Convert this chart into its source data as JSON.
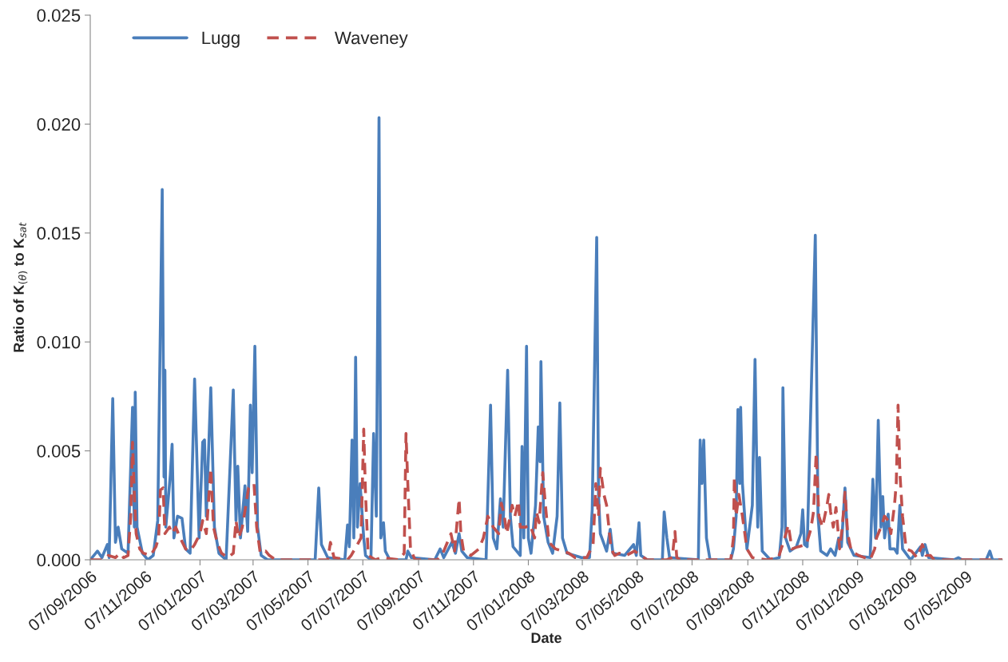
{
  "chart_data": {
    "type": "line",
    "xlabel": "Date",
    "ylabel": "Ratio of K$_{(θ)}$ to K$_{sat}$",
    "xlim": [
      "2006-09-07",
      "2009-06-17"
    ],
    "xticks": [
      {
        "value": "2006-09-07",
        "label": "07/09/2006"
      },
      {
        "value": "2006-11-07",
        "label": "07/11/2006"
      },
      {
        "value": "2007-01-07",
        "label": "07/01/2007"
      },
      {
        "value": "2007-03-07",
        "label": "07/03/2007"
      },
      {
        "value": "2007-05-07",
        "label": "07/05/2007"
      },
      {
        "value": "2007-07-07",
        "label": "07/07/2007"
      },
      {
        "value": "2007-09-07",
        "label": "07/09/2007"
      },
      {
        "value": "2007-11-07",
        "label": "07/11/2007"
      },
      {
        "value": "2008-01-07",
        "label": "07/01/2008"
      },
      {
        "value": "2008-03-07",
        "label": "07/03/2008"
      },
      {
        "value": "2008-05-07",
        "label": "07/05/2008"
      },
      {
        "value": "2008-07-07",
        "label": "07/07/2008"
      },
      {
        "value": "2008-09-07",
        "label": "07/09/2008"
      },
      {
        "value": "2008-11-07",
        "label": "07/11/2008"
      },
      {
        "value": "2009-01-07",
        "label": "07/01/2009"
      },
      {
        "value": "2009-03-07",
        "label": "07/03/2009"
      },
      {
        "value": "2009-05-07",
        "label": "07/05/2009"
      }
    ],
    "ylim": [
      0,
      0.025
    ],
    "yticks": [
      {
        "value": 0,
        "label": "0.000"
      },
      {
        "value": 0.005,
        "label": "0.005"
      },
      {
        "value": 0.01,
        "label": "0.010"
      },
      {
        "value": 0.015,
        "label": "0.015"
      },
      {
        "value": 0.02,
        "label": "0.020"
      },
      {
        "value": 0.025,
        "label": "0.025"
      }
    ],
    "grid": false,
    "legend": "top left",
    "marker": "none",
    "series": [
      {
        "name": "Lugg",
        "color": "#4a7ebb",
        "line_style": "solid",
        "x": [
          "2006-09-07",
          "2006-09-15",
          "2006-09-20",
          "2006-09-26",
          "2006-09-28",
          "2006-10-02",
          "2006-10-05",
          "2006-10-08",
          "2006-10-12",
          "2006-10-19",
          "2006-10-24",
          "2006-10-26",
          "2006-10-27",
          "2006-10-29",
          "2006-11-04",
          "2006-11-10",
          "2006-11-16",
          "2006-11-21",
          "2006-11-26",
          "2006-11-28",
          "2006-11-29",
          "2006-11-30",
          "2006-12-05",
          "2006-12-07",
          "2006-12-09",
          "2006-12-13",
          "2006-12-18",
          "2006-12-22",
          "2006-12-27",
          "2007-01-01",
          "2007-01-04",
          "2007-01-06",
          "2007-01-10",
          "2007-01-12",
          "2007-01-14",
          "2007-01-19",
          "2007-01-23",
          "2007-01-28",
          "2007-02-05",
          "2007-02-13",
          "2007-02-16",
          "2007-02-18",
          "2007-02-21",
          "2007-02-26",
          "2007-03-01",
          "2007-03-04",
          "2007-03-06",
          "2007-03-09",
          "2007-03-12",
          "2007-03-16",
          "2007-03-23",
          "2007-05-15",
          "2007-05-19",
          "2007-05-22",
          "2007-05-29",
          "2007-06-17",
          "2007-06-20",
          "2007-06-22",
          "2007-06-25",
          "2007-06-27",
          "2007-06-29",
          "2007-07-01",
          "2007-07-04",
          "2007-07-08",
          "2007-07-10",
          "2007-07-16",
          "2007-07-19",
          "2007-07-22",
          "2007-07-25",
          "2007-07-27",
          "2007-07-30",
          "2007-08-01",
          "2007-08-06",
          "2007-08-24",
          "2007-08-26",
          "2007-08-30",
          "2007-09-25",
          "2007-10-01",
          "2007-10-05",
          "2007-10-14",
          "2007-10-18",
          "2007-10-22",
          "2007-10-25",
          "2007-10-31",
          "2007-11-21",
          "2007-11-26",
          "2007-11-29",
          "2007-12-03",
          "2007-12-07",
          "2007-12-10",
          "2007-12-15",
          "2007-12-18",
          "2007-12-21",
          "2007-12-29",
          "2007-12-31",
          "2008-01-02",
          "2008-01-05",
          "2008-01-07",
          "2008-01-10",
          "2008-01-15",
          "2008-01-18",
          "2008-01-20",
          "2008-01-21",
          "2008-01-24",
          "2008-01-29",
          "2008-02-03",
          "2008-02-08",
          "2008-02-11",
          "2008-02-14",
          "2008-02-19",
          "2008-03-06",
          "2008-03-15",
          "2008-03-18",
          "2008-03-23",
          "2008-03-25",
          "2008-03-27",
          "2008-04-03",
          "2008-04-07",
          "2008-04-10",
          "2008-04-23",
          "2008-05-03",
          "2008-05-06",
          "2008-05-09",
          "2008-05-11",
          "2008-05-18",
          "2008-06-04",
          "2008-06-06",
          "2008-06-09",
          "2008-06-12",
          "2008-07-14",
          "2008-07-16",
          "2008-07-18",
          "2008-07-20",
          "2008-07-23",
          "2008-07-27",
          "2008-08-19",
          "2008-08-22",
          "2008-08-25",
          "2008-08-27",
          "2008-08-29",
          "2008-08-30",
          "2008-09-01",
          "2008-09-06",
          "2008-09-12",
          "2008-09-15",
          "2008-09-18",
          "2008-09-20",
          "2008-09-23",
          "2008-10-02",
          "2008-10-12",
          "2008-10-15",
          "2008-10-16",
          "2008-10-19",
          "2008-10-24",
          "2008-10-31",
          "2008-11-05",
          "2008-11-07",
          "2008-11-09",
          "2008-11-12",
          "2008-11-21",
          "2008-11-24",
          "2008-11-27",
          "2008-12-04",
          "2008-12-08",
          "2008-12-13",
          "2008-12-17",
          "2008-12-20",
          "2008-12-24",
          "2008-12-27",
          "2009-01-03",
          "2009-01-21",
          "2009-01-24",
          "2009-01-27",
          "2009-01-30",
          "2009-02-02",
          "2009-02-04",
          "2009-02-06",
          "2009-02-10",
          "2009-02-12",
          "2009-02-17",
          "2009-02-20",
          "2009-02-23",
          "2009-02-26",
          "2009-03-07",
          "2009-03-18",
          "2009-03-20",
          "2009-03-23",
          "2009-03-27",
          "2009-04-24",
          "2009-04-29",
          "2009-05-03",
          "2009-05-30",
          "2009-06-03",
          "2009-06-06",
          "2009-06-17"
        ],
        "values": [
          0.0,
          0.0004,
          0.0001,
          0.0007,
          0.0001,
          0.0074,
          0.0008,
          0.0015,
          0.0005,
          0.0003,
          0.007,
          0.0015,
          0.0077,
          0.0015,
          0.0003,
          0.0,
          0.0002,
          0.0018,
          0.017,
          0.0038,
          0.0087,
          0.0015,
          0.0039,
          0.0053,
          0.001,
          0.002,
          0.0019,
          0.0005,
          0.0003,
          0.0083,
          0.004,
          0.001,
          0.0054,
          0.0055,
          0.002,
          0.0079,
          0.0015,
          0.0003,
          0.0,
          0.0078,
          0.0018,
          0.0043,
          0.001,
          0.0034,
          0.0013,
          0.0071,
          0.004,
          0.0098,
          0.0015,
          0.0002,
          0.0,
          0.0,
          0.0033,
          0.0007,
          0.0001,
          0.0,
          0.0016,
          0.0006,
          0.0055,
          0.001,
          0.0093,
          0.0015,
          0.0035,
          0.001,
          0.0002,
          0.0,
          0.0058,
          0.002,
          0.0203,
          0.001,
          0.0017,
          0.0004,
          0.0,
          0.0,
          0.0004,
          0.0001,
          0.0,
          0.0005,
          0.0001,
          0.0008,
          0.0003,
          0.0012,
          0.0004,
          0.0001,
          0.0,
          0.0071,
          0.001,
          0.0005,
          0.0028,
          0.0015,
          0.0087,
          0.002,
          0.0006,
          0.0002,
          0.0052,
          0.001,
          0.0098,
          0.001,
          0.0003,
          0.0025,
          0.0061,
          0.0045,
          0.0091,
          0.002,
          0.0008,
          0.0003,
          0.002,
          0.0072,
          0.001,
          0.0003,
          0.0001,
          0.0001,
          0.0023,
          0.0148,
          0.003,
          0.0012,
          0.0004,
          0.0014,
          0.0003,
          0.0002,
          0.0007,
          0.0002,
          0.0017,
          0.0002,
          0.0,
          0.0,
          0.0022,
          0.001,
          0.0001,
          0.0,
          0.0055,
          0.0035,
          0.0055,
          0.001,
          0.0,
          0.0,
          0.0005,
          0.002,
          0.0069,
          0.0035,
          0.007,
          0.0035,
          0.0005,
          0.0025,
          0.0092,
          0.0015,
          0.0047,
          0.0004,
          0.0,
          0.0001,
          0.0015,
          0.0079,
          0.001,
          0.0004,
          0.0006,
          0.0012,
          0.0023,
          0.0007,
          0.0006,
          0.0149,
          0.002,
          0.0004,
          0.0002,
          0.0005,
          0.0002,
          0.001,
          0.0006,
          0.0033,
          0.0008,
          0.0002,
          0.0001,
          0.0037,
          0.001,
          0.0064,
          0.0015,
          0.0029,
          0.001,
          0.0021,
          0.0005,
          0.0005,
          0.0003,
          0.0025,
          0.0005,
          0.0,
          0.0006,
          0.0002,
          0.0007,
          0.0001,
          0.0,
          0.0001,
          0.0,
          0.0,
          0.0004,
          0.0,
          0.0
        ]
      },
      {
        "name": "Waveney",
        "color": "#c0504d",
        "line_style": "dashed",
        "x": [
          "2006-09-07",
          "2006-09-22",
          "2006-09-27",
          "2006-10-05",
          "2006-10-10",
          "2006-10-14",
          "2006-10-19",
          "2006-10-22",
          "2006-10-24",
          "2006-10-26",
          "2006-10-28",
          "2006-11-01",
          "2006-11-05",
          "2006-11-13",
          "2006-11-19",
          "2006-11-22",
          "2006-11-24",
          "2006-11-27",
          "2006-11-29",
          "2006-12-04",
          "2006-12-07",
          "2006-12-11",
          "2006-12-16",
          "2006-12-22",
          "2006-12-27",
          "2007-01-01",
          "2007-01-07",
          "2007-01-10",
          "2007-01-14",
          "2007-01-19",
          "2007-01-22",
          "2007-01-26",
          "2007-01-31",
          "2007-02-07",
          "2007-02-13",
          "2007-02-16",
          "2007-02-19",
          "2007-02-23",
          "2007-02-27",
          "2007-03-02",
          "2007-03-05",
          "2007-03-08",
          "2007-03-11",
          "2007-03-15",
          "2007-03-21",
          "2007-03-25",
          "2007-04-01",
          "2007-05-29",
          "2007-06-01",
          "2007-06-05",
          "2007-06-20",
          "2007-06-24",
          "2007-07-01",
          "2007-07-05",
          "2007-07-08",
          "2007-07-10",
          "2007-07-13",
          "2007-07-21",
          "2007-07-28",
          "2007-08-16",
          "2007-08-22",
          "2007-08-24",
          "2007-08-26",
          "2007-08-29",
          "2007-09-03",
          "2007-09-28",
          "2007-10-04",
          "2007-10-13",
          "2007-10-17",
          "2007-10-22",
          "2007-10-24",
          "2007-10-27",
          "2007-10-31",
          "2007-11-04",
          "2007-11-13",
          "2007-11-18",
          "2007-11-23",
          "2007-11-29",
          "2007-12-05",
          "2007-12-08",
          "2007-12-11",
          "2007-12-14",
          "2007-12-20",
          "2007-12-23",
          "2007-12-27",
          "2007-12-29",
          "2008-01-04",
          "2008-01-09",
          "2008-01-14",
          "2008-01-16",
          "2008-01-19",
          "2008-01-23",
          "2008-01-26",
          "2008-01-30",
          "2008-02-06",
          "2008-02-14",
          "2008-02-21",
          "2008-02-28",
          "2008-03-12",
          "2008-03-19",
          "2008-03-22",
          "2008-03-25",
          "2008-03-27",
          "2008-03-31",
          "2008-04-03",
          "2008-04-08",
          "2008-04-12",
          "2008-04-17",
          "2008-04-25",
          "2008-05-04",
          "2008-05-11",
          "2008-05-18",
          "2008-06-09",
          "2008-06-15",
          "2008-06-18",
          "2008-06-20",
          "2008-06-24",
          "2008-08-19",
          "2008-08-22",
          "2008-08-23",
          "2008-08-25",
          "2008-08-28",
          "2008-09-01",
          "2008-09-06",
          "2008-09-12",
          "2008-09-28",
          "2008-10-11",
          "2008-10-18",
          "2008-10-22",
          "2008-10-26",
          "2008-11-02",
          "2008-11-11",
          "2008-11-16",
          "2008-11-19",
          "2008-11-22",
          "2008-11-25",
          "2008-11-29",
          "2008-12-04",
          "2008-12-06",
          "2008-12-08",
          "2008-12-11",
          "2008-12-14",
          "2008-12-18",
          "2008-12-21",
          "2008-12-24",
          "2008-12-27",
          "2008-12-31",
          "2009-01-08",
          "2009-01-21",
          "2009-01-26",
          "2009-01-28",
          "2009-02-02",
          "2009-02-06",
          "2009-02-10",
          "2009-02-13",
          "2009-02-17",
          "2009-02-19",
          "2009-02-21",
          "2009-02-23",
          "2009-02-26",
          "2009-03-02",
          "2009-03-08",
          "2009-03-14",
          "2009-03-20",
          "2009-03-24",
          "2009-03-29",
          "2009-04-02",
          "2009-06-17"
        ],
        "values": [
          0.0,
          0.0,
          0.0002,
          0.0001,
          0.0003,
          0.0001,
          0.0002,
          0.002,
          0.0054,
          0.003,
          0.0012,
          0.0005,
          0.0003,
          0.0002,
          0.0006,
          0.001,
          0.0032,
          0.0033,
          0.0012,
          0.0015,
          0.0012,
          0.0015,
          0.001,
          0.0005,
          0.0004,
          0.0007,
          0.0012,
          0.0018,
          0.0012,
          0.0042,
          0.0015,
          0.0008,
          0.0003,
          0.0001,
          0.0003,
          0.0018,
          0.001,
          0.0015,
          0.0025,
          0.0033,
          0.0034,
          0.0035,
          0.0015,
          0.0003,
          0.0004,
          0.0002,
          0.0,
          0.0,
          0.0008,
          0.0001,
          0.0,
          0.0002,
          0.0007,
          0.001,
          0.006,
          0.003,
          0.0002,
          0.0,
          0.0001,
          0.0,
          0.0003,
          0.0058,
          0.0035,
          0.0005,
          0.0,
          0.0,
          0.0003,
          0.0012,
          0.0004,
          0.0028,
          0.0012,
          0.0004,
          0.0003,
          0.0002,
          0.0005,
          0.001,
          0.002,
          0.0015,
          0.0012,
          0.0026,
          0.0021,
          0.0012,
          0.0025,
          0.002,
          0.0027,
          0.0015,
          0.0015,
          0.0016,
          0.001,
          0.0022,
          0.0017,
          0.004,
          0.0025,
          0.0008,
          0.0005,
          0.0004,
          0.0003,
          0.0001,
          0.0001,
          0.0007,
          0.0035,
          0.002,
          0.0042,
          0.003,
          0.0025,
          0.0005,
          0.0002,
          0.0003,
          0.0002,
          0.0004,
          0.0002,
          0.0,
          0.0,
          0.0001,
          0.0013,
          0.0001,
          0.0,
          0.0,
          0.001,
          0.0038,
          0.002,
          0.003,
          0.002,
          0.0005,
          0.0001,
          0.0,
          0.0001,
          0.001,
          0.0016,
          0.0005,
          0.0006,
          0.0007,
          0.0014,
          0.0022,
          0.0049,
          0.002,
          0.0015,
          0.0025,
          0.003,
          0.0022,
          0.0015,
          0.0024,
          0.0005,
          0.0015,
          0.0031,
          0.0012,
          0.0004,
          0.0002,
          0.0,
          0.0005,
          0.001,
          0.0015,
          0.002,
          0.0018,
          0.0012,
          0.0025,
          0.0035,
          0.0071,
          0.004,
          0.002,
          0.0005,
          0.0004,
          0.0001,
          0.0007,
          0.0002,
          0.0002,
          0.0,
          0.0
        ]
      }
    ]
  }
}
